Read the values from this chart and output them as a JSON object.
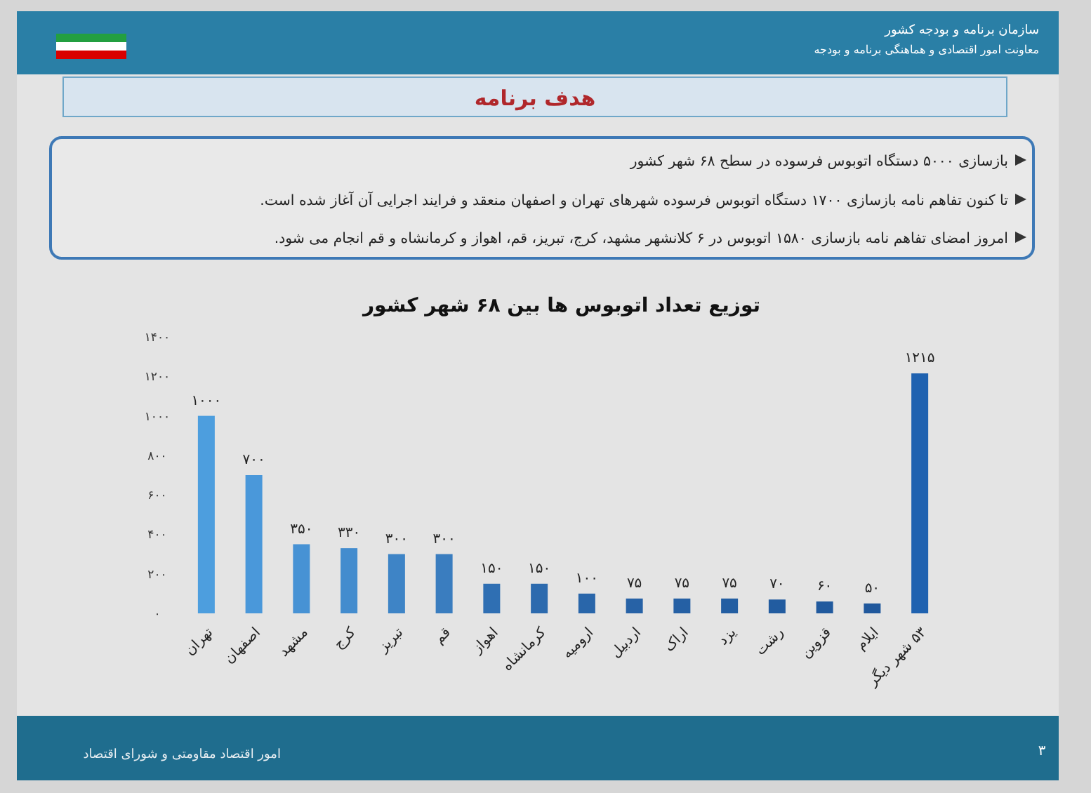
{
  "chart_data": {
    "type": "bar",
    "title": "توزیع تعداد اتوبوس ها بین ۶۸ شهر کشور",
    "categories": [
      "تهران",
      "اصفهان",
      "مشهد",
      "کرج",
      "تبریز",
      "قم",
      "اهواز",
      "کرمانشاه",
      "ارومیه",
      "اردبیل",
      "اراک",
      "یزد",
      "رشت",
      "قزوین",
      "ایلام",
      "۵۳ شهر دیگر"
    ],
    "values": [
      1000,
      700,
      350,
      330,
      300,
      300,
      150,
      150,
      100,
      75,
      75,
      75,
      70,
      60,
      50,
      1215
    ],
    "value_labels": [
      "۱۰۰۰",
      "۷۰۰",
      "۳۵۰",
      "۳۳۰",
      "۳۰۰",
      "۳۰۰",
      "۱۵۰",
      "۱۵۰",
      "۱۰۰",
      "۷۵",
      "۷۵",
      "۷۵",
      "۷۰",
      "۶۰",
      "۵۰",
      "۱۲۱۵"
    ],
    "colors": [
      "#4d9ede",
      "#4a98da",
      "#4792d4",
      "#438cce",
      "#3e84c6",
      "#3a7dbf",
      "#2f6fb3",
      "#2c6aae",
      "#2966aa",
      "#2762a6",
      "#2560a4",
      "#235ea2",
      "#225ca0",
      "#215a9e",
      "#20589c",
      "#1f62b0"
    ],
    "ylim": [
      0,
      1400
    ],
    "yticks": [
      {
        "value": 0,
        "label": "٠"
      },
      {
        "value": 200,
        "label": "۲۰۰"
      },
      {
        "value": 400,
        "label": "۴۰۰"
      },
      {
        "value": 600,
        "label": "۶۰۰"
      },
      {
        "value": 800,
        "label": "۸۰۰"
      },
      {
        "value": 1000,
        "label": "۱۰۰۰"
      },
      {
        "value": 1200,
        "label": "۱۲۰۰"
      },
      {
        "value": 1400,
        "label": "۱۴۰۰"
      }
    ],
    "grid": false,
    "annotations": [
      "سازمان برنامه و بودجه کشور",
      "معاونت امور اقتصادی و هماهنگی برنامه و بودجه",
      "هدف برنامه",
      "بازسازی ۵۰۰۰ دستگاه اتوبوس فرسوده در سطح ۶۸ شهر کشور",
      "تا کنون تفاهم نامه بازسازی ۱۷۰۰ دستگاه اتوبوس فرسوده شهرهای تهران و اصفهان منعقد و فرایند اجرایی آن آغاز شده است.",
      "امروز امضای تفاهم نامه بازسازی ۱۵۸۰ اتوبوس در ۶ کلانشهر مشهد، کرج، تبریز، قم، اهواز و کرمانشاه و قم انجام می شود.",
      "امور اقتصاد مقاومتی و شورای اقتصاد",
      "۳"
    ]
  }
}
